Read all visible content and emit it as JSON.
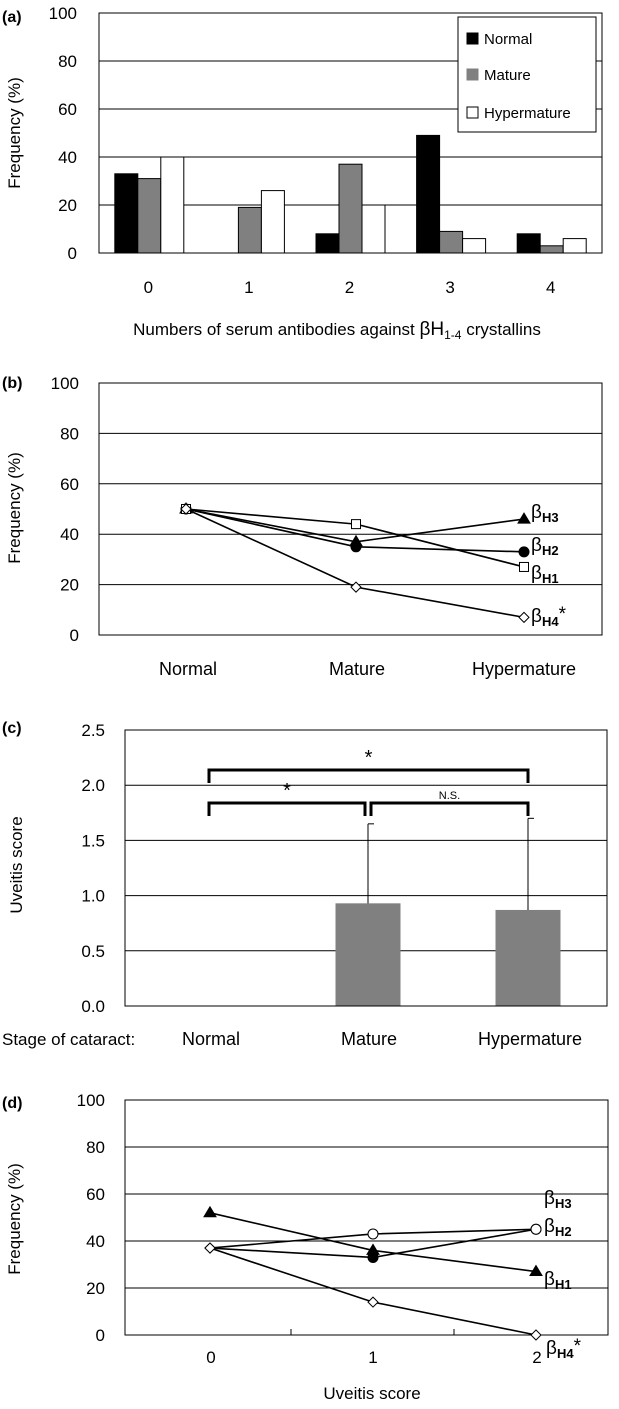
{
  "chart_data": [
    {
      "panel": "(a)",
      "type": "bar",
      "ylabel": "Frequency (%)",
      "xlabel_main": "Numbers of serum antibodies against ",
      "xlabel_greek": "βH",
      "xlabel_sub": "1-4",
      "xlabel_tail": " crystallins",
      "ylim": [
        0,
        100
      ],
      "yticks": [
        "0",
        "20",
        "40",
        "60",
        "80",
        "100"
      ],
      "categories": [
        "0",
        "1",
        "2",
        "3",
        "4"
      ],
      "series": [
        {
          "name": "Normal",
          "color": "#000000",
          "values": [
            33,
            0,
            8,
            49,
            8
          ]
        },
        {
          "name": "Mature",
          "color": "#808080",
          "values": [
            31,
            19,
            37,
            9,
            3
          ]
        },
        {
          "name": "Hypermature",
          "color": "#ffffff",
          "values": [
            40,
            26,
            20,
            6,
            6
          ]
        }
      ],
      "legend_position": "top-right"
    },
    {
      "panel": "(b)",
      "type": "line",
      "ylabel": "Frequency (%)",
      "ylim": [
        0,
        100
      ],
      "yticks": [
        "0",
        "20",
        "40",
        "60",
        "80",
        "100"
      ],
      "categories": [
        "Normal",
        "Mature",
        "Hypermature"
      ],
      "series": [
        {
          "greek": "β",
          "sub": "H3",
          "star": "",
          "marker": "triangle",
          "values": [
            50,
            37,
            46
          ]
        },
        {
          "greek": "β",
          "sub": "H2",
          "star": "",
          "marker": "circle",
          "values": [
            50,
            35,
            33
          ]
        },
        {
          "greek": "β",
          "sub": "H1",
          "star": "",
          "marker": "square",
          "values": [
            50,
            44,
            27
          ]
        },
        {
          "greek": "β",
          "sub": "H4",
          "star": "*",
          "marker": "diamond",
          "values": [
            50,
            19,
            7
          ]
        }
      ]
    },
    {
      "panel": "(c)",
      "type": "bar",
      "ylabel": "Uveitis score",
      "xlabel_prefix": "Stage of cataract:",
      "ylim": [
        0,
        2.5
      ],
      "yticks": [
        "0.0",
        "0.5",
        "1.0",
        "1.5",
        "2.0",
        "2.5"
      ],
      "categories": [
        "Normal",
        "Mature",
        "Hypermature"
      ],
      "values": [
        0,
        0.93,
        0.87
      ],
      "errors": [
        0,
        0.72,
        0.83
      ],
      "bar_color": "#808080",
      "brackets": [
        {
          "from": 0,
          "to": 2,
          "label": "*"
        },
        {
          "from": 0,
          "to": 1,
          "label": "*"
        },
        {
          "from": 1,
          "to": 2,
          "label": "N.S."
        }
      ]
    },
    {
      "panel": "(d)",
      "type": "line",
      "ylabel": "Frequency (%)",
      "xlabel": "Uveitis score",
      "ylim": [
        0,
        100
      ],
      "yticks": [
        "0",
        "20",
        "40",
        "60",
        "80",
        "100"
      ],
      "categories": [
        "0",
        "1",
        "2"
      ],
      "series": [
        {
          "greek": "β",
          "sub": "H3",
          "star": "",
          "marker": "circle-filled",
          "values": [
            37,
            33,
            45
          ]
        },
        {
          "greek": "β",
          "sub": "H2",
          "star": "",
          "marker": "circle-open",
          "values": [
            37,
            43,
            45
          ]
        },
        {
          "greek": "β",
          "sub": "H1",
          "star": "",
          "marker": "triangle",
          "values": [
            52,
            36,
            27
          ]
        },
        {
          "greek": "β",
          "sub": "H4",
          "star": "*",
          "marker": "diamond",
          "values": [
            37,
            14,
            0
          ]
        }
      ]
    }
  ]
}
